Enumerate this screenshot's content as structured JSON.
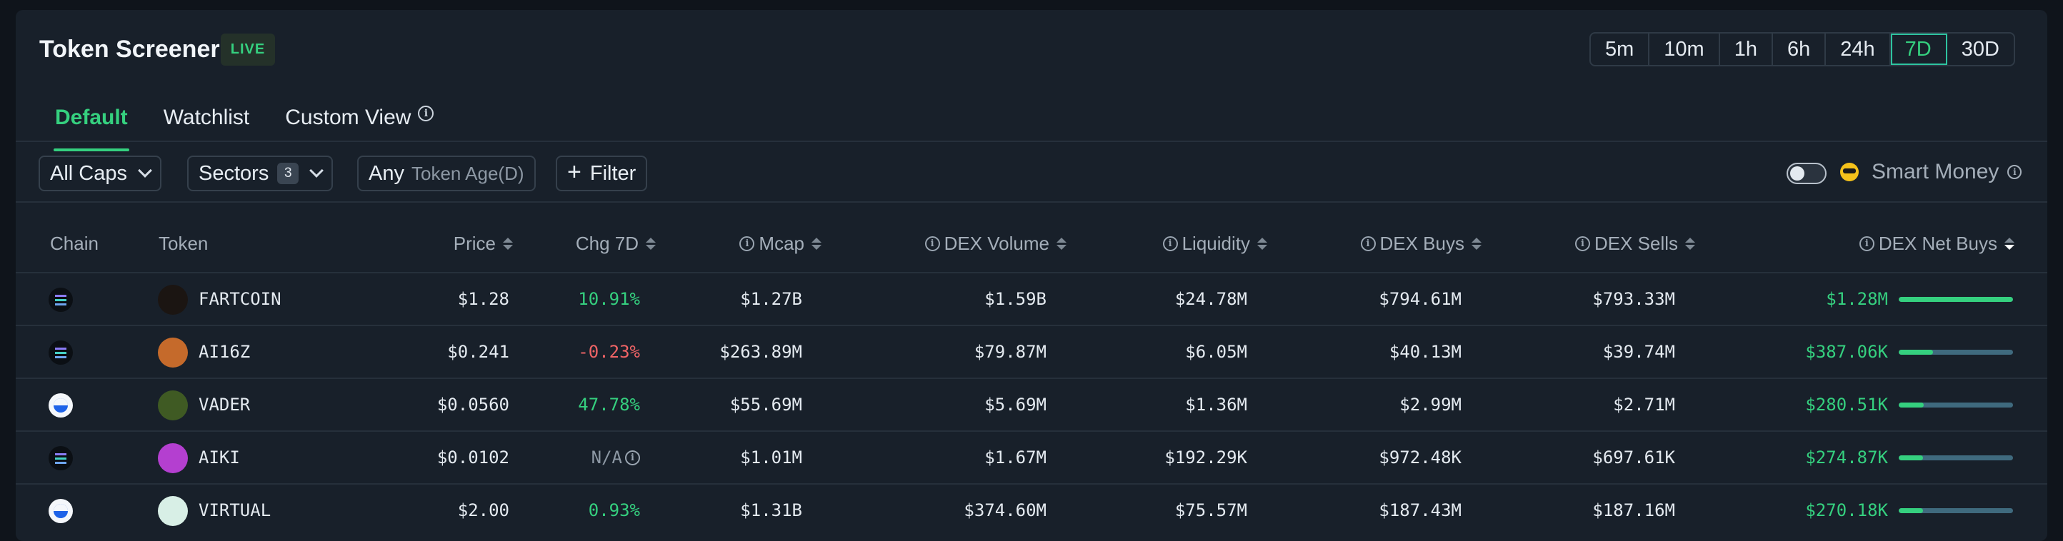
{
  "header": {
    "title": "Token Screener",
    "live_badge": "LIVE",
    "timeframes": [
      "5m",
      "10m",
      "1h",
      "6h",
      "24h",
      "7D",
      "30D"
    ],
    "active_timeframe": "7D"
  },
  "tabs": [
    {
      "label": "Default",
      "active": true
    },
    {
      "label": "Watchlist",
      "active": false
    },
    {
      "label": "Custom View",
      "active": false
    }
  ],
  "filters": {
    "caps": "All Caps",
    "sectors": "Sectors",
    "sectors_count": "3",
    "age_value": "Any",
    "age_label": "Token Age(D)",
    "filter": "Filter",
    "smart_money": "Smart Money",
    "smart_money_enabled": false
  },
  "columns": {
    "chain": "Chain",
    "token": "Token",
    "price": "Price",
    "chg": "Chg 7D",
    "mcap": "Mcap",
    "dex_volume": "DEX Volume",
    "liquidity": "Liquidity",
    "dex_buys": "DEX Buys",
    "dex_sells": "DEX Sells",
    "dex_net_buys": "DEX Net Buys"
  },
  "rows": [
    {
      "chain": "solana",
      "token": "FARTCOIN",
      "price": "$1.28",
      "chg": "10.91%",
      "chg_dir": "pos",
      "mcap": "$1.27B",
      "dex_volume": "$1.59B",
      "liquidity": "$24.78M",
      "dex_buys": "$794.61M",
      "dex_sells": "$793.33M",
      "net_buys": "$1.28M",
      "net_ratio": 1.0,
      "avatar_color": "#1b1512"
    },
    {
      "chain": "solana",
      "token": "AI16Z",
      "price": "$0.241",
      "chg": "-0.23%",
      "chg_dir": "neg",
      "mcap": "$263.89M",
      "dex_volume": "$79.87M",
      "liquidity": "$6.05M",
      "dex_buys": "$40.13M",
      "dex_sells": "$39.74M",
      "net_buys": "$387.06K",
      "net_ratio": 0.3,
      "avatar_color": "#c56a2b"
    },
    {
      "chain": "base",
      "token": "VADER",
      "price": "$0.0560",
      "chg": "47.78%",
      "chg_dir": "pos",
      "mcap": "$55.69M",
      "dex_volume": "$5.69M",
      "liquidity": "$1.36M",
      "dex_buys": "$2.99M",
      "dex_sells": "$2.71M",
      "net_buys": "$280.51K",
      "net_ratio": 0.22,
      "avatar_color": "#3f5a23"
    },
    {
      "chain": "solana",
      "token": "AIKI",
      "price": "$0.0102",
      "chg": "N/A",
      "chg_dir": "na",
      "mcap": "$1.01M",
      "dex_volume": "$1.67M",
      "liquidity": "$192.29K",
      "dex_buys": "$972.48K",
      "dex_sells": "$697.61K",
      "net_buys": "$274.87K",
      "net_ratio": 0.21,
      "avatar_color": "#b43fd0"
    },
    {
      "chain": "base",
      "token": "VIRTUAL",
      "price": "$2.00",
      "chg": "0.93%",
      "chg_dir": "pos",
      "mcap": "$1.31B",
      "dex_volume": "$374.60M",
      "liquidity": "$75.57M",
      "dex_buys": "$187.43M",
      "dex_sells": "$187.16M",
      "net_buys": "$270.18K",
      "net_ratio": 0.21,
      "avatar_color": "#d8efe6"
    }
  ]
}
